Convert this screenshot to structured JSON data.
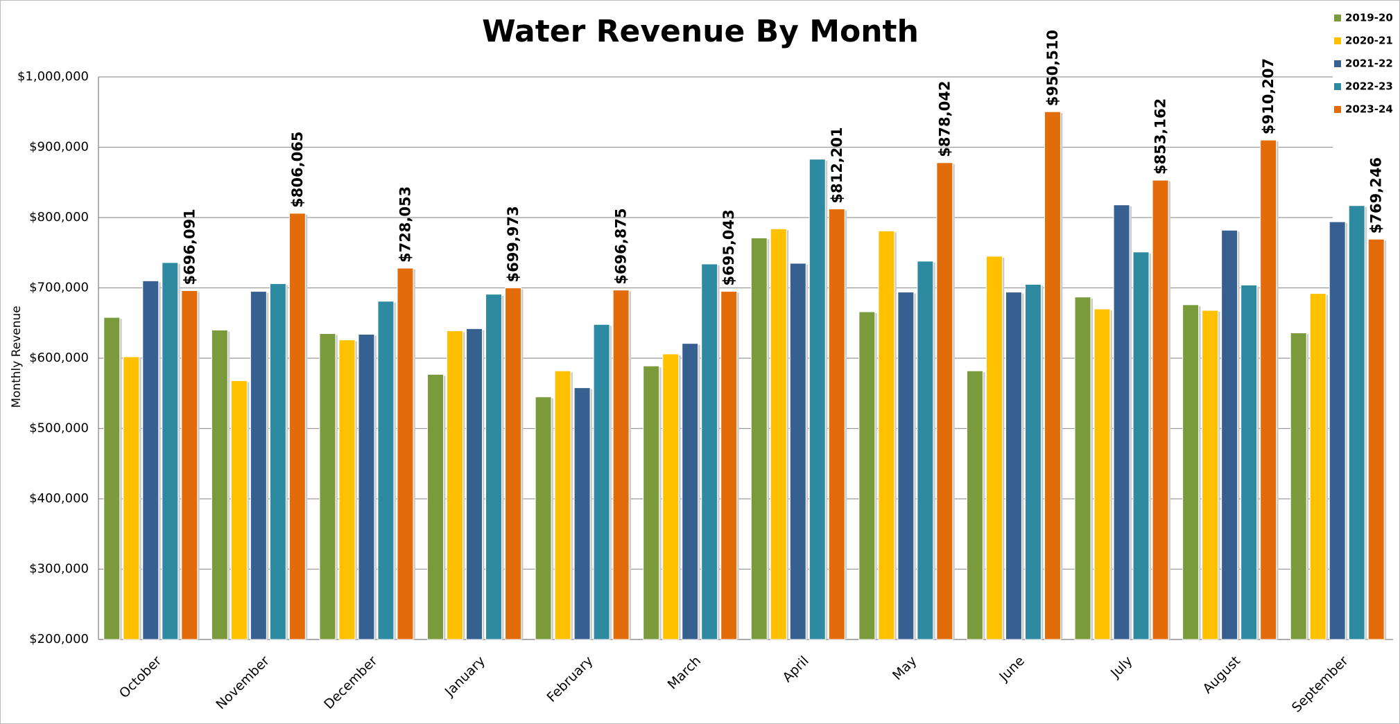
{
  "chart_data": {
    "type": "bar",
    "title": "Water Revenue By Month",
    "y_label": "Monthly Revenue",
    "categories": [
      "October",
      "November",
      "December",
      "January",
      "February",
      "March",
      "April",
      "May",
      "June",
      "July",
      "August",
      "September"
    ],
    "series": [
      {
        "name": "2019-20",
        "color": "#7a9a3c",
        "values": [
          658000,
          640000,
          635000,
          577000,
          545000,
          589000,
          771000,
          666000,
          582000,
          687000,
          676000,
          636000
        ]
      },
      {
        "name": "2020-21",
        "color": "#ffc000",
        "values": [
          602000,
          568000,
          626000,
          639000,
          582000,
          606000,
          784000,
          781000,
          745000,
          670000,
          668000,
          692000
        ]
      },
      {
        "name": "2021-22",
        "color": "#35608f",
        "values": [
          710000,
          695000,
          634000,
          642000,
          558000,
          621000,
          735000,
          694000,
          694000,
          818000,
          782000,
          794000
        ]
      },
      {
        "name": "2022-23",
        "color": "#2e8aa0",
        "values": [
          736000,
          706000,
          681000,
          691000,
          648000,
          734000,
          883000,
          738000,
          705000,
          751000,
          704000,
          817000
        ]
      },
      {
        "name": "2023-24",
        "color": "#e36c0a",
        "values": [
          696091,
          806065,
          728053,
          699973,
          696875,
          695043,
          812201,
          878042,
          950510,
          853162,
          910207,
          769246
        ],
        "value_labels": [
          "$696,091",
          "$806,065",
          "$728,053",
          "$699,973",
          "$696,875",
          "$695,043",
          "$812,201",
          "$878,042",
          "$950,510",
          "$853,162",
          "$910,207",
          "$769,246"
        ]
      }
    ],
    "ylim": [
      200000,
      1000000
    ],
    "yticks": [
      {
        "value": 200000,
        "label": "$200,000"
      },
      {
        "value": 300000,
        "label": "$300,000"
      },
      {
        "value": 400000,
        "label": "$400,000"
      },
      {
        "value": 500000,
        "label": "$500,000"
      },
      {
        "value": 600000,
        "label": "$600,000"
      },
      {
        "value": 700000,
        "label": "$700,000"
      },
      {
        "value": 800000,
        "label": "$800,000"
      },
      {
        "value": 900000,
        "label": "$900,000"
      },
      {
        "value": 1000000,
        "label": "$1,000,000"
      }
    ],
    "grid": true,
    "legend": "top-right"
  }
}
